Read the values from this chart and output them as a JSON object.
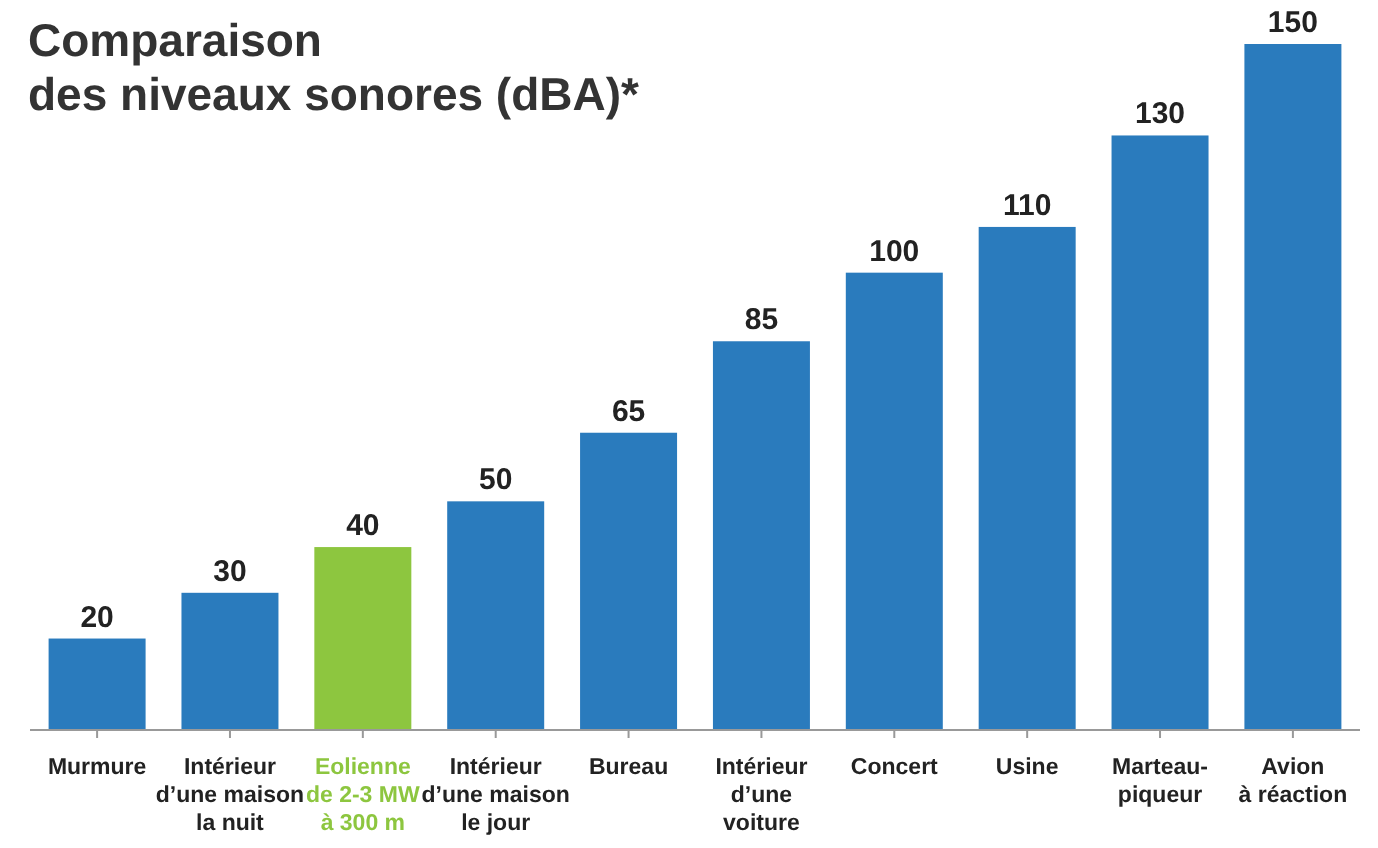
{
  "chart_data": {
    "type": "bar",
    "title": "Comparaison\ndes niveaux sonores (dBA)*",
    "categories": [
      "Murmure",
      "Intérieur\nd’une maison\nla nuit",
      "Eolienne\nde 2-3 MW\nà 300 m",
      "Intérieur\nd’une maison\nle jour",
      "Bureau",
      "Intérieur\nd’une\nvoiture",
      "Concert",
      "Usine",
      "Marteau-\npiqueur",
      "Avion\nà réaction"
    ],
    "values": [
      20,
      30,
      40,
      50,
      65,
      85,
      100,
      110,
      130,
      150
    ],
    "color": "#2a7bbd",
    "colors": [
      "#2a7bbd",
      "#2a7bbd",
      "#8dc63f",
      "#2a7bbd",
      "#2a7bbd",
      "#2a7bbd",
      "#2a7bbd",
      "#2a7bbd",
      "#2a7bbd",
      "#2a7bbd"
    ],
    "data_labels": true
  }
}
